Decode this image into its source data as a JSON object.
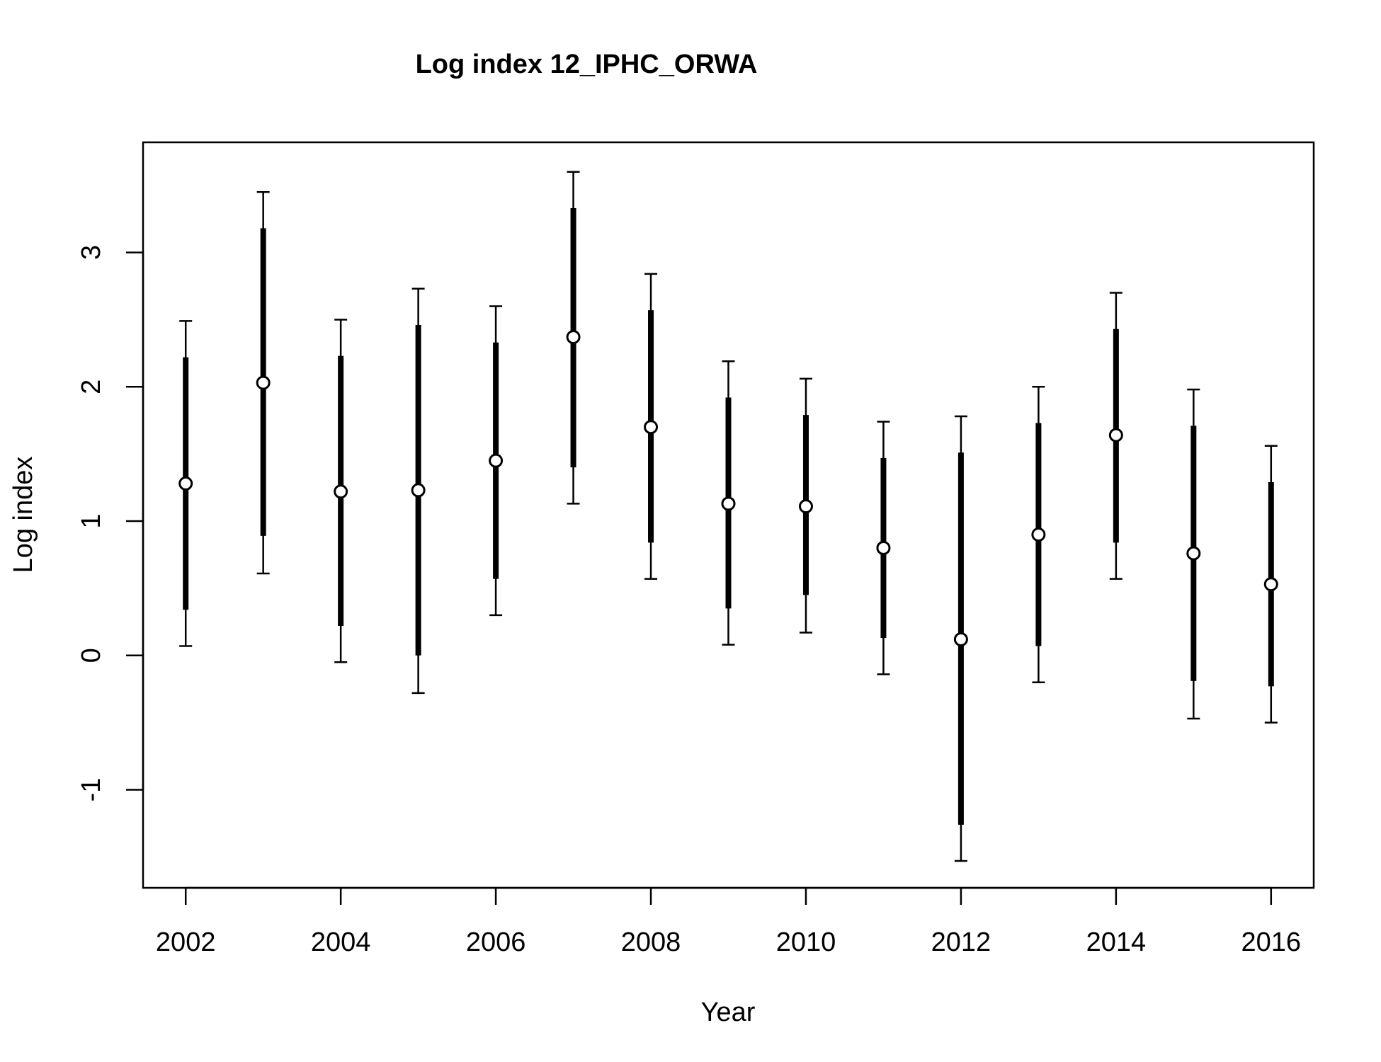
{
  "chart_data": {
    "type": "scatter",
    "title": "Log index 12_IPHC_ORWA",
    "xlabel": "Year",
    "ylabel": "Log index",
    "xlim": [
      2001.45,
      2016.55
    ],
    "ylim": [
      -1.73,
      3.82
    ],
    "x_ticks": [
      2002,
      2004,
      2006,
      2008,
      2010,
      2012,
      2014,
      2016
    ],
    "y_ticks": [
      -1,
      0,
      1,
      2,
      3
    ],
    "grid": false,
    "legend": "none",
    "series": [
      {
        "x": [
          2002,
          2003,
          2004,
          2005,
          2006,
          2007,
          2008,
          2009,
          2010,
          2011,
          2012,
          2013,
          2014,
          2015,
          2016
        ],
        "values": [
          1.28,
          2.03,
          1.22,
          1.23,
          1.45,
          2.37,
          1.7,
          1.13,
          1.11,
          0.8,
          0.12,
          0.9,
          1.64,
          0.76,
          0.53
        ],
        "inner_lower": [
          0.34,
          0.89,
          0.22,
          0.0,
          0.57,
          1.4,
          0.84,
          0.35,
          0.45,
          0.13,
          -1.26,
          0.07,
          0.84,
          -0.19,
          -0.23
        ],
        "inner_upper": [
          2.22,
          3.18,
          2.23,
          2.46,
          2.33,
          3.33,
          2.57,
          1.92,
          1.79,
          1.47,
          1.51,
          1.73,
          2.43,
          1.71,
          1.29
        ],
        "outer_lower": [
          0.07,
          0.61,
          -0.05,
          -0.28,
          0.3,
          1.13,
          0.57,
          0.08,
          0.17,
          -0.14,
          -1.53,
          -0.2,
          0.57,
          -0.47,
          -0.5
        ],
        "outer_upper": [
          2.49,
          3.45,
          2.5,
          2.73,
          2.6,
          3.6,
          2.84,
          2.19,
          2.06,
          1.74,
          1.78,
          2.0,
          2.7,
          1.98,
          1.56
        ]
      }
    ]
  }
}
